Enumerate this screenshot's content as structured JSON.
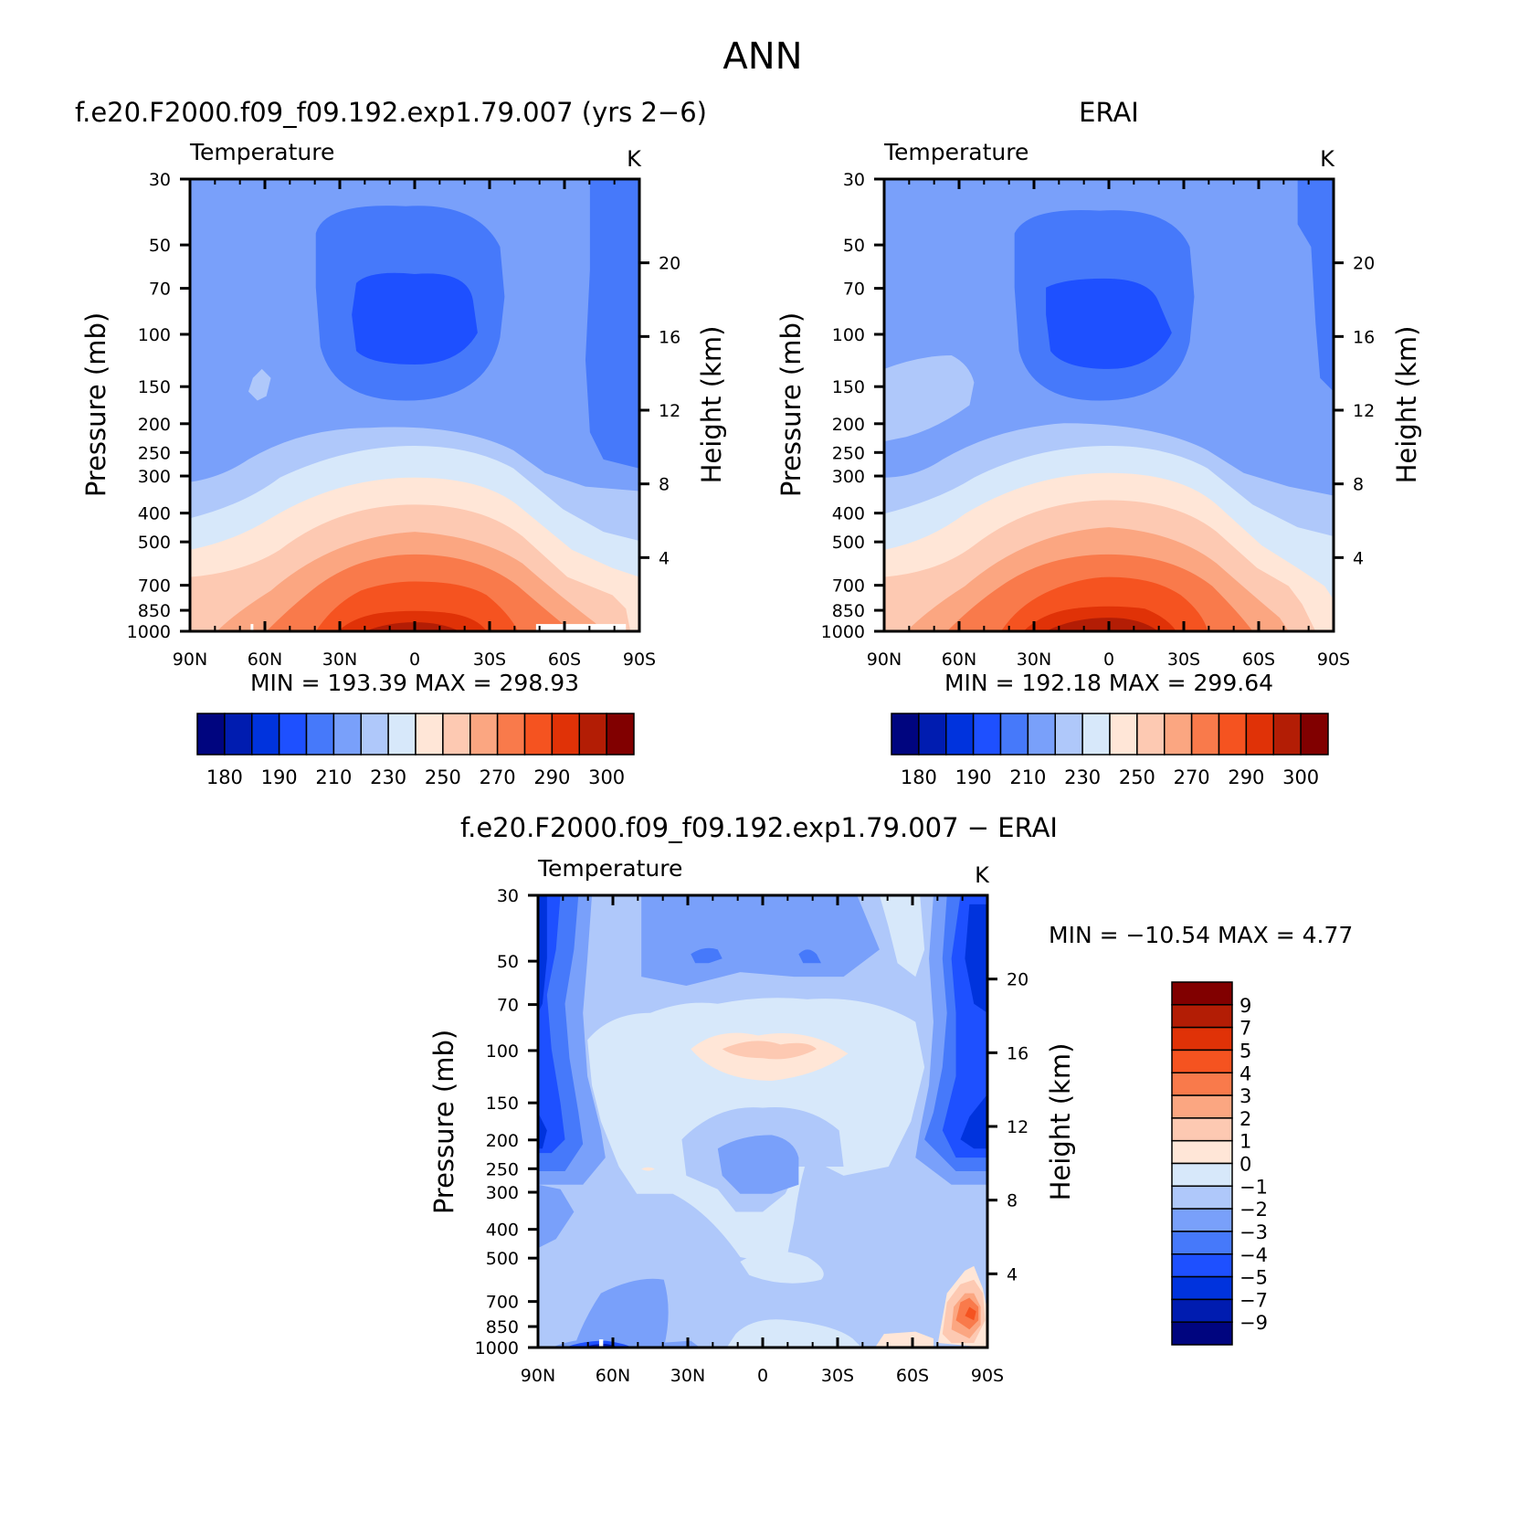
{
  "figure_title": "ANN",
  "chart_data": [
    {
      "type": "contour",
      "title": "f.e20.F2000.f09_f09.192.exp1.79.007 (yrs 2−6)",
      "variable": "Temperature",
      "units": "K",
      "ylabel": "Pressure (mb)",
      "ylabel_right": "Height (km)",
      "x_ticks": [
        "90N",
        "60N",
        "30N",
        "0",
        "30S",
        "60S",
        "90S"
      ],
      "y_ticks": [
        "30",
        "50",
        "70",
        "100",
        "150",
        "200",
        "250",
        "300",
        "400",
        "500",
        "700",
        "850",
        "1000"
      ],
      "y_ticks_right": [
        "20",
        "16",
        "12",
        "8",
        "4"
      ],
      "stats_text": "MIN = 193.39 MAX = 298.93",
      "min": 193.39,
      "max": 298.93,
      "colorbar_labels": [
        "180",
        "190",
        "210",
        "230",
        "250",
        "270",
        "290",
        "300"
      ],
      "colorbar_colors": [
        "#00057f",
        "#001cb0",
        "#0033dd",
        "#1e50ff",
        "#4679fa",
        "#79a0fa",
        "#afc8fa",
        "#d7e8fa",
        "#ffe6d7",
        "#fdc9b2",
        "#fba681",
        "#f97a4b",
        "#f55320",
        "#e03207",
        "#b31d05",
        "#810000"
      ]
    },
    {
      "type": "contour",
      "title": "ERAI",
      "variable": "Temperature",
      "units": "K",
      "ylabel": "Pressure (mb)",
      "ylabel_right": "Height (km)",
      "x_ticks": [
        "90N",
        "60N",
        "30N",
        "0",
        "30S",
        "60S",
        "90S"
      ],
      "y_ticks": [
        "30",
        "50",
        "70",
        "100",
        "150",
        "200",
        "250",
        "300",
        "400",
        "500",
        "700",
        "850",
        "1000"
      ],
      "y_ticks_right": [
        "20",
        "16",
        "12",
        "8",
        "4"
      ],
      "stats_text": "MIN = 192.18 MAX = 299.64",
      "min": 192.18,
      "max": 299.64,
      "colorbar_labels": [
        "180",
        "190",
        "210",
        "230",
        "250",
        "270",
        "290",
        "300"
      ],
      "colorbar_colors": [
        "#00057f",
        "#001cb0",
        "#0033dd",
        "#1e50ff",
        "#4679fa",
        "#79a0fa",
        "#afc8fa",
        "#d7e8fa",
        "#ffe6d7",
        "#fdc9b2",
        "#fba681",
        "#f97a4b",
        "#f55320",
        "#e03207",
        "#b31d05",
        "#810000"
      ]
    },
    {
      "type": "contour",
      "title": "f.e20.F2000.f09_f09.192.exp1.79.007 − ERAI",
      "variable": "Temperature",
      "units": "K",
      "ylabel": "Pressure (mb)",
      "ylabel_right": "Height (km)",
      "x_ticks": [
        "90N",
        "60N",
        "30N",
        "0",
        "30S",
        "60S",
        "90S"
      ],
      "y_ticks": [
        "30",
        "50",
        "70",
        "100",
        "150",
        "200",
        "250",
        "300",
        "400",
        "500",
        "700",
        "850",
        "1000"
      ],
      "y_ticks_right": [
        "20",
        "16",
        "12",
        "8",
        "4"
      ],
      "stats_text": "MIN = −10.54 MAX = 4.77",
      "min": -10.54,
      "max": 4.77,
      "colorbar_labels": [
        "9",
        "7",
        "5",
        "4",
        "3",
        "2",
        "1",
        "0",
        "−1",
        "−2",
        "−3",
        "−4",
        "−5",
        "−7",
        "−9"
      ],
      "colorbar_colors": [
        "#810000",
        "#b31d05",
        "#e03207",
        "#f55320",
        "#f97a4b",
        "#fba681",
        "#fdc9b2",
        "#ffe6d7",
        "#d7e8fa",
        "#afc8fa",
        "#79a0fa",
        "#4679fa",
        "#1e50ff",
        "#0033dd",
        "#001cb0",
        "#00057f"
      ]
    }
  ]
}
